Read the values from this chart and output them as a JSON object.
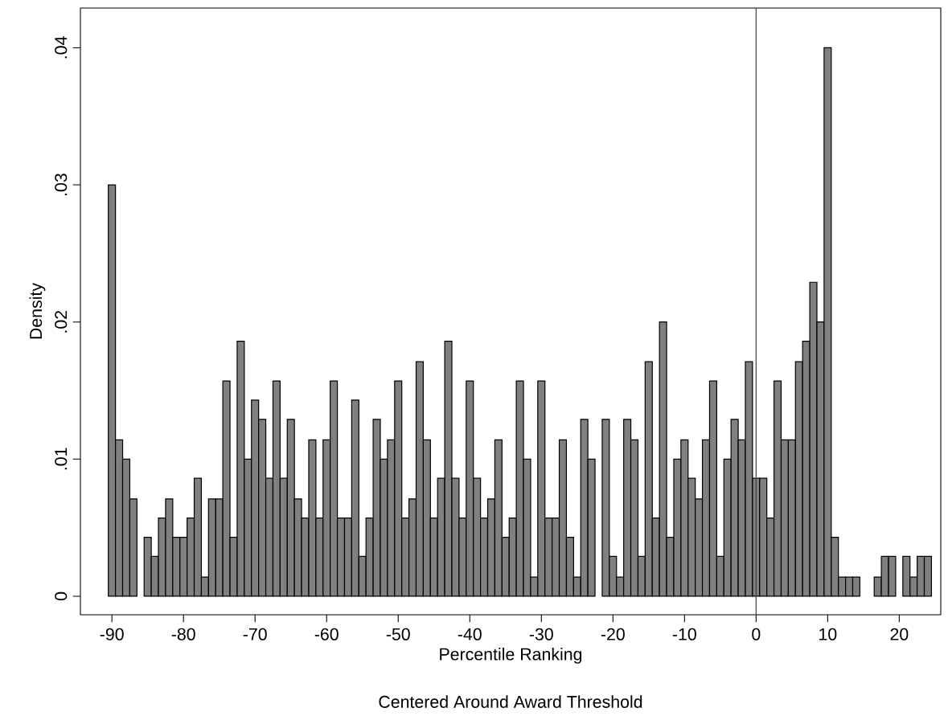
{
  "chart_data": {
    "type": "histogram",
    "xlabel": "Percentile Ranking",
    "ylabel": "Density",
    "annotations": [
      "Centered Around Award Threshold"
    ],
    "bins": [
      -90.5,
      -89.5,
      -88.5,
      -87.5,
      -86.5,
      -85.5,
      -84.5,
      -83.5,
      -82.5,
      -81.5,
      -80.5,
      -79.5,
      -78.5,
      -77.5,
      -76.5,
      -75.5,
      -74.5,
      -73.5,
      -72.5,
      -71.5,
      -70.5,
      -69.5,
      -68.5,
      -67.5,
      -66.5,
      -65.5,
      -64.5,
      -63.5,
      -62.5,
      -61.5,
      -60.5,
      -59.5,
      -58.5,
      -57.5,
      -56.5,
      -55.5,
      -54.5,
      -53.5,
      -52.5,
      -51.5,
      -50.5,
      -49.5,
      -48.5,
      -47.5,
      -46.5,
      -45.5,
      -44.5,
      -43.5,
      -42.5,
      -41.5,
      -40.5,
      -39.5,
      -38.5,
      -37.5,
      -36.5,
      -35.5,
      -34.5,
      -33.5,
      -32.5,
      -31.5,
      -30.5,
      -29.5,
      -28.5,
      -27.5,
      -26.5,
      -25.5,
      -24.5,
      -23.5,
      -22.5,
      -21.5,
      -20.5,
      -19.5,
      -18.5,
      -17.5,
      -16.5,
      -15.5,
      -14.5,
      -13.5,
      -12.5,
      -11.5,
      -10.5,
      -9.5,
      -8.5,
      -7.5,
      -6.5,
      -5.5,
      -4.5,
      -3.5,
      -2.5,
      -1.5,
      -0.5,
      0.5,
      1.5,
      2.5,
      3.5,
      4.5,
      5.5,
      6.5,
      7.5,
      8.5,
      9.5,
      10.5,
      11.5,
      12.5,
      13.5,
      14.5,
      15.5,
      16.5,
      17.5,
      18.5,
      19.5,
      20.5,
      21.5,
      22.5,
      23.5,
      24.5
    ],
    "values": [
      0.03,
      0.0114,
      0.01,
      0.0071,
      0,
      0.0043,
      0.0029,
      0.0057,
      0.0071,
      0.0043,
      0.0043,
      0.0057,
      0.0086,
      0.0014,
      0.0071,
      0.0071,
      0.0157,
      0.0043,
      0.0186,
      0.01,
      0.0143,
      0.0129,
      0.0086,
      0.0157,
      0.0086,
      0.0129,
      0.0071,
      0.0057,
      0.0114,
      0.0057,
      0.0114,
      0.0157,
      0.0057,
      0.0057,
      0.0143,
      0.0029,
      0.0057,
      0.0129,
      0.01,
      0.0114,
      0.0157,
      0.0057,
      0.0071,
      0.0171,
      0.0114,
      0.0057,
      0.0086,
      0.0186,
      0.0086,
      0.0057,
      0.0157,
      0.0086,
      0.0057,
      0.0071,
      0.0114,
      0.0043,
      0.0057,
      0.0157,
      0.01,
      0.0014,
      0.0157,
      0.0057,
      0.0057,
      0.0114,
      0.0043,
      0.0014,
      0.0129,
      0.01,
      0,
      0.0129,
      0.0029,
      0.0014,
      0.0129,
      0.0114,
      0.0029,
      0.0171,
      0.0057,
      0.02,
      0.0043,
      0.01,
      0.0114,
      0.0086,
      0.0071,
      0.0114,
      0.0157,
      0.0029,
      0.01,
      0.0129,
      0.0114,
      0.0171,
      0.0086,
      0.0086,
      0.0057,
      0.0157,
      0.0114,
      0.0114,
      0.0171,
      0.0186,
      0.0229,
      0.02,
      0.04,
      0.0043,
      0.0014,
      0.0014,
      0.0014,
      0,
      0,
      0.0014,
      0.0029,
      0.0029,
      0,
      0.0029,
      0.0014,
      0.0029,
      0.0029
    ],
    "color": "#808080",
    "xlim": [
      -94.4,
      25.8
    ],
    "ylim": [
      -0.00135,
      0.0429
    ],
    "xticks": [
      -90,
      -80,
      -70,
      -60,
      -50,
      -40,
      -30,
      -20,
      -10,
      0,
      10,
      20
    ],
    "yticks": [
      {
        "value": 0,
        "label": "0"
      },
      {
        "value": 0.01,
        "label": ".01"
      },
      {
        "value": 0.02,
        "label": ".02"
      },
      {
        "value": 0.03,
        "label": ".03"
      },
      {
        "value": 0.04,
        "label": ".04"
      }
    ],
    "ref_lines": [
      {
        "axis": "x",
        "value": 0,
        "color": "#404040"
      }
    ]
  }
}
